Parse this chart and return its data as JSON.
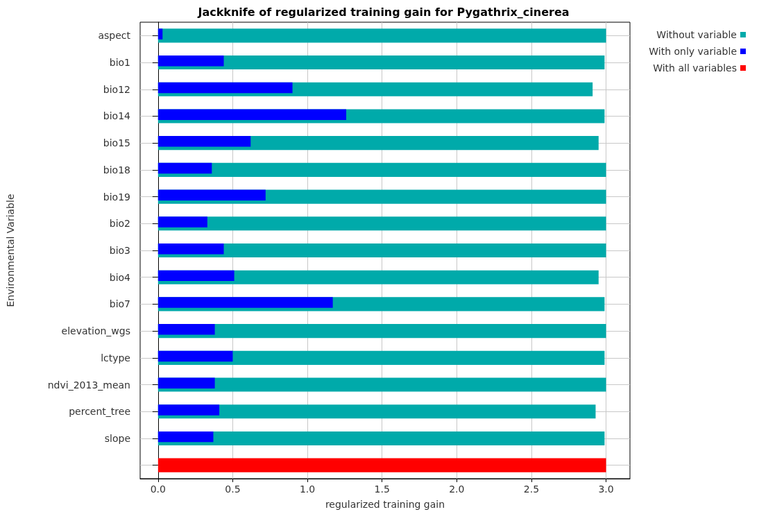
{
  "chart_data": {
    "type": "bar",
    "orientation": "horizontal",
    "title": "Jackknife of regularized training gain for Pygathrix_cinerea",
    "xlabel": "regularized training gain",
    "ylabel": "Environmental Variable",
    "categories": [
      "aspect",
      "bio1",
      "bio12",
      "bio14",
      "bio15",
      "bio18",
      "bio19",
      "bio2",
      "bio3",
      "bio4",
      "bio7",
      "elevation_wgs",
      "lctype",
      "ndvi_2013_mean",
      "percent_tree",
      "slope",
      null
    ],
    "series": [
      {
        "name": "Without variable",
        "color": "#00aaaa",
        "values": [
          3.0,
          2.99,
          2.91,
          2.99,
          2.95,
          3.0,
          3.0,
          3.0,
          3.0,
          2.95,
          2.99,
          3.0,
          2.99,
          3.0,
          2.93,
          2.99,
          null
        ]
      },
      {
        "name": "With only variable",
        "color": "#0000ff",
        "values": [
          0.03,
          0.44,
          0.9,
          1.26,
          0.62,
          0.36,
          0.72,
          0.33,
          0.44,
          0.51,
          1.17,
          0.38,
          0.5,
          0.38,
          0.41,
          0.37,
          null
        ]
      },
      {
        "name": "With all variables",
        "color": "#ff0000",
        "values": [
          null,
          null,
          null,
          null,
          null,
          null,
          null,
          null,
          null,
          null,
          null,
          null,
          null,
          null,
          null,
          null,
          3.0
        ]
      }
    ],
    "xlim": [
      -0.12,
      3.16
    ],
    "xticks": [
      {
        "value": 0,
        "label": "0.0"
      },
      {
        "value": 0.5,
        "label": "0.5"
      },
      {
        "value": 1,
        "label": "1.0"
      },
      {
        "value": 1.5,
        "label": "1.5"
      },
      {
        "value": 2,
        "label": "2.0"
      },
      {
        "value": 2.5,
        "label": "2.5"
      },
      {
        "value": 3,
        "label": "3.0"
      }
    ],
    "grid": true,
    "legend": "top right"
  }
}
